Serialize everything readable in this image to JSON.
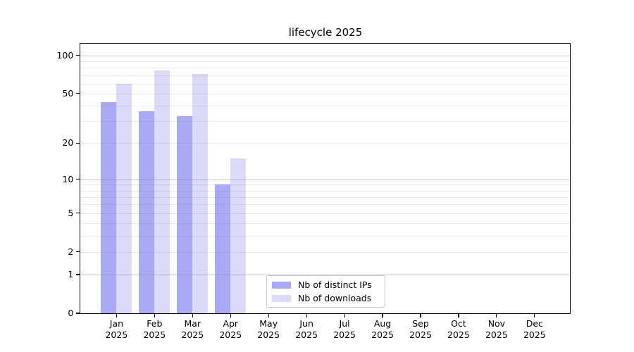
{
  "chart_data": {
    "type": "bar",
    "title": "lifecycle 2025",
    "categories": [
      "Jan 2025",
      "Feb 2025",
      "Mar 2025",
      "Apr 2025",
      "May 2025",
      "Jun 2025",
      "Jul 2025",
      "Aug 2025",
      "Sep 2025",
      "Oct 2025",
      "Nov 2025",
      "Dec 2025"
    ],
    "series": [
      {
        "name": "Nb of distinct IPs",
        "color": "#a9a9f6",
        "values": [
          43,
          36,
          33,
          9,
          null,
          null,
          null,
          null,
          null,
          null,
          null,
          null
        ]
      },
      {
        "name": "Nb of downloads",
        "color": "#dbdbf9",
        "values": [
          60,
          76,
          71,
          15,
          null,
          null,
          null,
          null,
          null,
          null,
          null,
          null
        ]
      }
    ],
    "yscale": "log1p",
    "ylim": [
      0,
      125
    ],
    "ytick_labels": [
      "0",
      "1",
      "2",
      "5",
      "10",
      "20",
      "50",
      "100"
    ],
    "ytick_values": [
      0,
      1,
      2,
      5,
      10,
      20,
      50,
      100
    ],
    "major_gridlines": [
      1,
      10,
      100
    ],
    "minor_gridlines": [
      2,
      3,
      4,
      5,
      6,
      7,
      8,
      9,
      20,
      30,
      40,
      50,
      60,
      70,
      80,
      90
    ],
    "grid": true,
    "legend_position": "lower center-left",
    "xlabel": "",
    "ylabel": ""
  },
  "palette": {
    "background": "#ffffff",
    "spine": "#000000",
    "major_grid_over_white": "#c6c6c6",
    "minor_grid_over_white": "#e8e8e8"
  }
}
